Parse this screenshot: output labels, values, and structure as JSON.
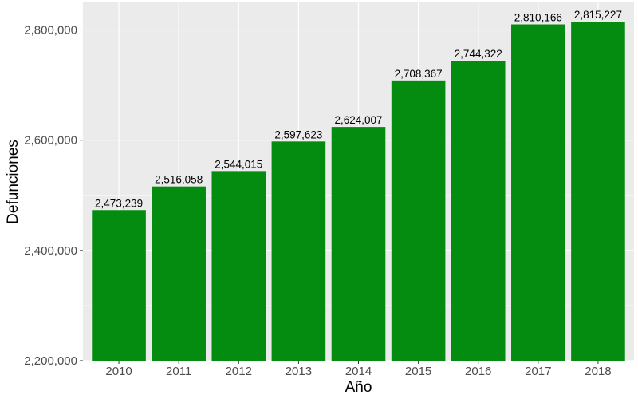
{
  "chart_data": {
    "type": "bar",
    "title": "",
    "xlabel": "Año",
    "ylabel": "Defunciones",
    "categories": [
      "2010",
      "2011",
      "2012",
      "2013",
      "2014",
      "2015",
      "2016",
      "2017",
      "2018"
    ],
    "values": [
      2473239,
      2516058,
      2544015,
      2597623,
      2624007,
      2708367,
      2744322,
      2810166,
      2815227
    ],
    "value_labels": [
      "2,473,239",
      "2,516,058",
      "2,544,015",
      "2,597,623",
      "2,624,007",
      "2,708,367",
      "2,744,322",
      "2,810,166",
      "2,815,227"
    ],
    "ylim": [
      2200000,
      2850000
    ],
    "y_ticks": [
      2200000,
      2400000,
      2600000,
      2800000
    ],
    "y_tick_labels": [
      "2,200,000",
      "2,400,000",
      "2,600,000",
      "2,800,000"
    ],
    "grid": true,
    "legend": "none",
    "colors": {
      "bar": "#038c0f",
      "panel": "#ebebeb",
      "grid_major": "#ffffff",
      "tick_text": "#4d4d4d"
    }
  }
}
